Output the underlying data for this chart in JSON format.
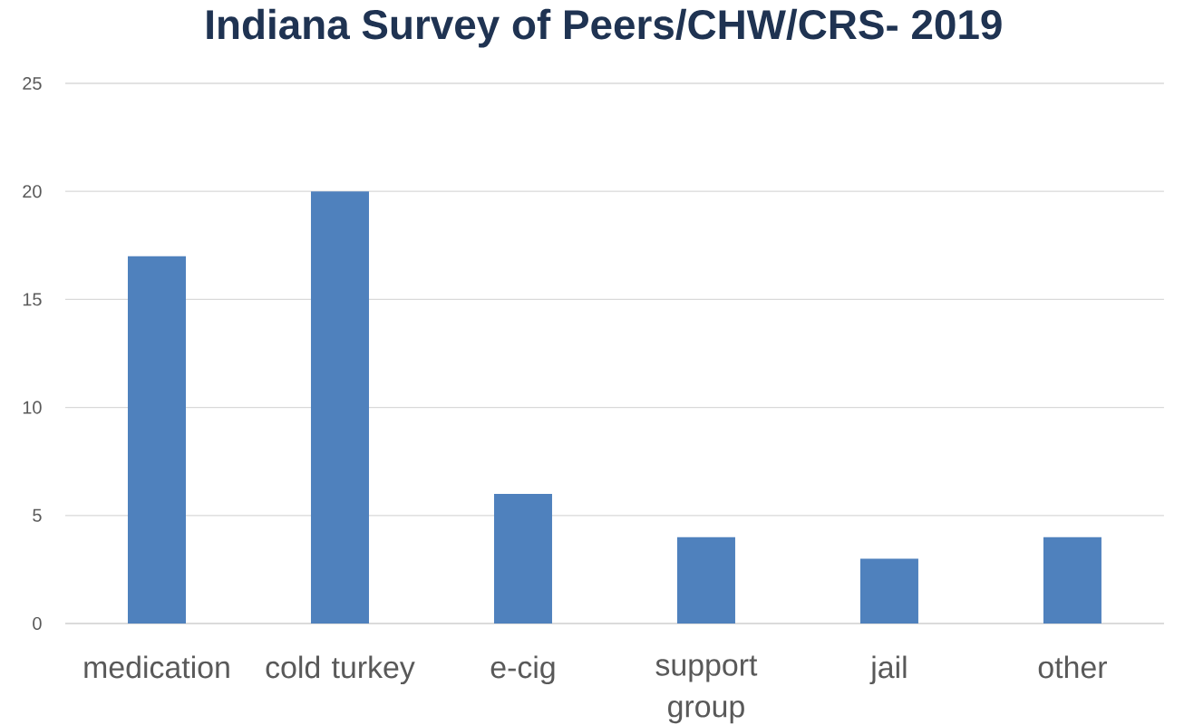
{
  "chart_data": {
    "type": "bar",
    "title": "Indiana Survey of Peers/CHW/CRS- 2019",
    "categories": [
      "medication",
      "cold turkey",
      "e-cig",
      "support group",
      "jail",
      "other"
    ],
    "values": [
      17,
      20,
      6,
      4,
      3,
      4
    ],
    "color": "#4f81bd",
    "ylim": [
      0,
      25
    ],
    "yticks": [
      0,
      5,
      10,
      15,
      20,
      25
    ],
    "grid": "y"
  }
}
